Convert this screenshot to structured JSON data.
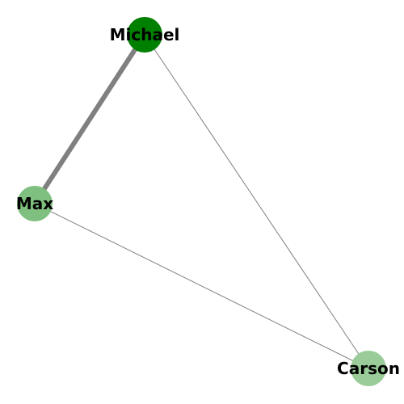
{
  "graph": {
    "nodes": [
      {
        "id": "michael",
        "label": "Michael",
        "color": "#008000"
      },
      {
        "id": "max",
        "label": "Max",
        "color": "#7fbf7f"
      },
      {
        "id": "carson",
        "label": "Carson",
        "color": "#99cc99"
      }
    ],
    "edges": [
      {
        "source": "michael",
        "target": "max",
        "weight": 6,
        "color": "#808080"
      },
      {
        "source": "michael",
        "target": "carson",
        "weight": 1,
        "color": "#808080"
      },
      {
        "source": "max",
        "target": "carson",
        "weight": 1,
        "color": "#808080"
      }
    ]
  }
}
